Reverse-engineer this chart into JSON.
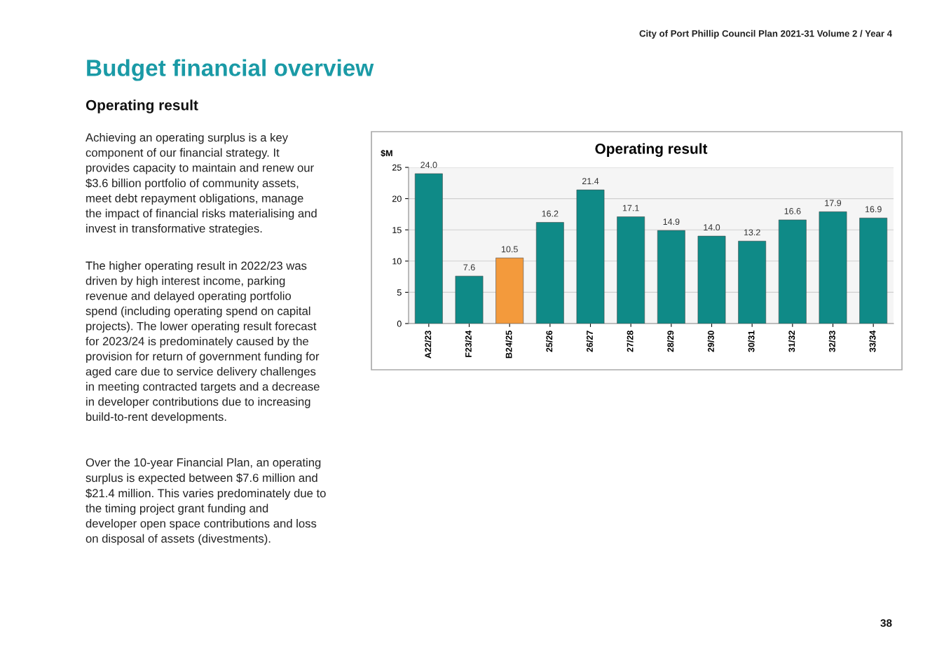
{
  "chart_data": {
    "type": "bar",
    "title": "Operating result",
    "ylabel": "$M",
    "categories": [
      "A22/23",
      "F23/24",
      "B24/25",
      "25/26",
      "26/27",
      "27/28",
      "28/29",
      "29/30",
      "30/31",
      "31/32",
      "32/33",
      "33/34"
    ],
    "values": [
      24.0,
      7.6,
      10.5,
      16.2,
      21.4,
      17.1,
      14.9,
      14.0,
      13.2,
      16.6,
      17.9,
      16.9
    ],
    "colors": [
      "#0f8a87",
      "#0f8a87",
      "#f39a3c",
      "#0f8a87",
      "#0f8a87",
      "#0f8a87",
      "#0f8a87",
      "#0f8a87",
      "#0f8a87",
      "#0f8a87",
      "#0f8a87",
      "#0f8a87"
    ],
    "ylim": [
      0,
      25
    ],
    "yticks": [
      0,
      5,
      10,
      15,
      20,
      25
    ],
    "grid": "y",
    "value_labels": [
      "24.0",
      "7.6",
      "10.5",
      "16.2",
      "21.4",
      "17.1",
      "14.9",
      "14.0",
      "13.2",
      "16.6",
      "17.9",
      "16.9"
    ],
    "annotations": [
      "City of Port Phillip Council Plan 2021-31 Volume 2 / Year 4",
      "Budget financial overview",
      "Operating result",
      "Achieving an operating surplus is a key\ncomponent of our financial strategy. It\nprovides capacity to maintain and renew our\n$3.6 billion portfolio of community assets,\nmeet debt repayment obligations, manage\nthe impact of financial risks materialising and\ninvest in transformative strategies.",
      "The higher operating result in 2022/23 was\ndriven by high interest income, parking\nrevenue and delayed operating portfolio\nspend (including operating spend on capital\nprojects). The lower operating result forecast\nfor 2023/24 is predominately caused by the\nprovision for return of government funding for\naged care due to service delivery challenges\nin meeting contracted targets and a decrease\nin developer contributions due to increasing\nbuild-to-rent developments.",
      "Over the 10-year Financial Plan, an operating\nsurplus is expected between $7.6 million and\n$21.4 million. This varies predominately due to\nthe timing project grant funding and\ndeveloper open space contributions and loss\non disposal of assets (divestments).",
      "38"
    ]
  }
}
